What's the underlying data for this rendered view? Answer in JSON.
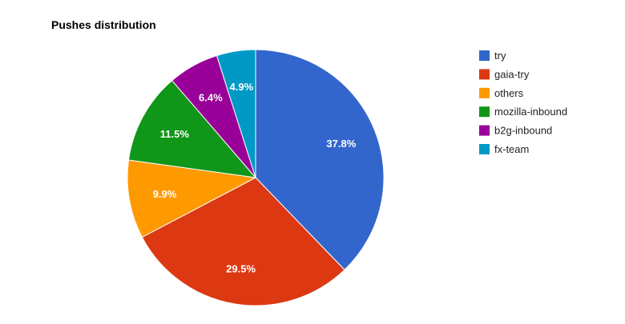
{
  "chart_data": {
    "type": "pie",
    "title": "Pushes distribution",
    "slices": [
      {
        "label": "try",
        "value": 37.8,
        "display": "37.8%",
        "color": "#3366cc"
      },
      {
        "label": "gaia-try",
        "value": 29.5,
        "display": "29.5%",
        "color": "#dc3912"
      },
      {
        "label": "others",
        "value": 9.9,
        "display": "9.9%",
        "color": "#ff9900"
      },
      {
        "label": "mozilla-inbound",
        "value": 11.5,
        "display": "11.5%",
        "color": "#109618"
      },
      {
        "label": "b2g-inbound",
        "value": 6.4,
        "display": "6.4%",
        "color": "#990099"
      },
      {
        "label": "fx-team",
        "value": 4.9,
        "display": "4.9%",
        "color": "#0099c6"
      }
    ],
    "legend_position": "right"
  }
}
